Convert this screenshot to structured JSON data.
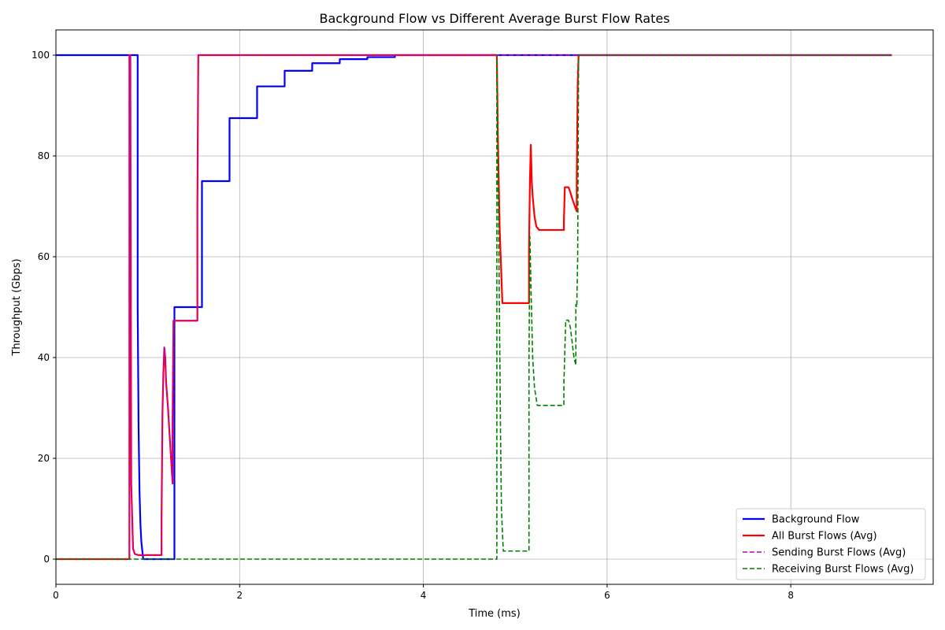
{
  "chart_data": {
    "type": "line",
    "title": "Background Flow vs Different Average Burst Flow Rates",
    "xlabel": "Time (ms)",
    "ylabel": "Throughput (Gbps)",
    "xlim": [
      0,
      9.55
    ],
    "ylim": [
      -5,
      105
    ],
    "xticks": [
      0,
      2,
      4,
      6,
      8
    ],
    "yticks": [
      0,
      20,
      40,
      60,
      80,
      100
    ],
    "grid": true,
    "legend_position": "lower-right",
    "series": [
      {
        "name": "Background Flow",
        "color": "#0000ff",
        "style": "solid",
        "points": [
          [
            0,
            100
          ],
          [
            0.89,
            100
          ],
          [
            0.89,
            50.5
          ],
          [
            0.9,
            26
          ],
          [
            0.91,
            13.5
          ],
          [
            0.92,
            7
          ],
          [
            0.93,
            3.5
          ],
          [
            0.95,
            0
          ],
          [
            1.29,
            0
          ],
          [
            1.29,
            50
          ],
          [
            1.59,
            50
          ],
          [
            1.59,
            75
          ],
          [
            1.89,
            75
          ],
          [
            1.89,
            87.5
          ],
          [
            2.19,
            87.5
          ],
          [
            2.19,
            93.8
          ],
          [
            2.49,
            93.8
          ],
          [
            2.49,
            96.9
          ],
          [
            2.79,
            96.9
          ],
          [
            2.79,
            98.4
          ],
          [
            3.09,
            98.4
          ],
          [
            3.09,
            99.2
          ],
          [
            3.39,
            99.2
          ],
          [
            3.39,
            99.6
          ],
          [
            3.69,
            99.6
          ],
          [
            3.69,
            100
          ],
          [
            9.1,
            100
          ]
        ]
      },
      {
        "name": "All Burst Flows (Avg)",
        "color": "#ff0000",
        "style": "solid",
        "points": [
          [
            0,
            0
          ],
          [
            0.8,
            0
          ],
          [
            0.8,
            100
          ],
          [
            0.81,
            100
          ],
          [
            0.82,
            15
          ],
          [
            0.84,
            2
          ],
          [
            0.86,
            1
          ],
          [
            0.9,
            0.8
          ],
          [
            1.15,
            0.8
          ],
          [
            1.15,
            8
          ],
          [
            1.16,
            29
          ],
          [
            1.17,
            37
          ],
          [
            1.18,
            42
          ],
          [
            1.19,
            40
          ],
          [
            1.2,
            35
          ],
          [
            1.22,
            30
          ],
          [
            1.24,
            24
          ],
          [
            1.26,
            18
          ],
          [
            1.27,
            15
          ],
          [
            1.27,
            27
          ],
          [
            1.28,
            47.3
          ],
          [
            1.54,
            47.3
          ],
          [
            1.54,
            70
          ],
          [
            1.55,
            100
          ],
          [
            4.8,
            100
          ],
          [
            4.81,
            85
          ],
          [
            4.83,
            66
          ],
          [
            4.86,
            50.8
          ],
          [
            5.15,
            50.8
          ],
          [
            5.15,
            61
          ],
          [
            5.16,
            75
          ],
          [
            5.17,
            82.2
          ],
          [
            5.18,
            75
          ],
          [
            5.19,
            72
          ],
          [
            5.21,
            68
          ],
          [
            5.23,
            66
          ],
          [
            5.26,
            65.3
          ],
          [
            5.53,
            65.3
          ],
          [
            5.53,
            67
          ],
          [
            5.54,
            73.8
          ],
          [
            5.58,
            73.8
          ],
          [
            5.6,
            72.8
          ],
          [
            5.63,
            71
          ],
          [
            5.66,
            69.5
          ],
          [
            5.67,
            69
          ],
          [
            5.67,
            75.5
          ],
          [
            5.68,
            94
          ],
          [
            5.69,
            100
          ],
          [
            9.1,
            100
          ]
        ]
      },
      {
        "name": "Sending Burst Flows (Avg)",
        "color": "#bf00bf",
        "style": "dashed",
        "points": [
          [
            0,
            0
          ],
          [
            0.8,
            0
          ],
          [
            0.8,
            100
          ],
          [
            0.81,
            100
          ],
          [
            0.82,
            15
          ],
          [
            0.84,
            2
          ],
          [
            0.86,
            1
          ],
          [
            0.9,
            0.8
          ],
          [
            1.15,
            0.8
          ],
          [
            1.15,
            8
          ],
          [
            1.16,
            29
          ],
          [
            1.17,
            37
          ],
          [
            1.18,
            42
          ],
          [
            1.19,
            40
          ],
          [
            1.2,
            35
          ],
          [
            1.22,
            30
          ],
          [
            1.24,
            24
          ],
          [
            1.26,
            18
          ],
          [
            1.27,
            15
          ],
          [
            1.27,
            27
          ],
          [
            1.28,
            47.3
          ],
          [
            1.54,
            47.3
          ],
          [
            1.54,
            70
          ],
          [
            1.55,
            100
          ],
          [
            9.1,
            100
          ]
        ]
      },
      {
        "name": "Receiving Burst Flows (Avg)",
        "color": "#008000",
        "style": "dashed",
        "points": [
          [
            0,
            0
          ],
          [
            4.8,
            0
          ],
          [
            4.8,
            100
          ],
          [
            4.81,
            80
          ],
          [
            4.82,
            65
          ],
          [
            4.83,
            45
          ],
          [
            4.84,
            25
          ],
          [
            4.85,
            10
          ],
          [
            4.87,
            1.6
          ],
          [
            5.15,
            1.6
          ],
          [
            5.15,
            40
          ],
          [
            5.16,
            64
          ],
          [
            5.17,
            55
          ],
          [
            5.19,
            40
          ],
          [
            5.21,
            34
          ],
          [
            5.24,
            30.5
          ],
          [
            5.53,
            30.5
          ],
          [
            5.53,
            35
          ],
          [
            5.55,
            47.4
          ],
          [
            5.58,
            47.4
          ],
          [
            5.6,
            46
          ],
          [
            5.62,
            43
          ],
          [
            5.64,
            40
          ],
          [
            5.66,
            38.5
          ],
          [
            5.66,
            50.5
          ],
          [
            5.67,
            50
          ],
          [
            5.68,
            60
          ],
          [
            5.69,
            100
          ],
          [
            9.1,
            100
          ]
        ]
      }
    ]
  }
}
